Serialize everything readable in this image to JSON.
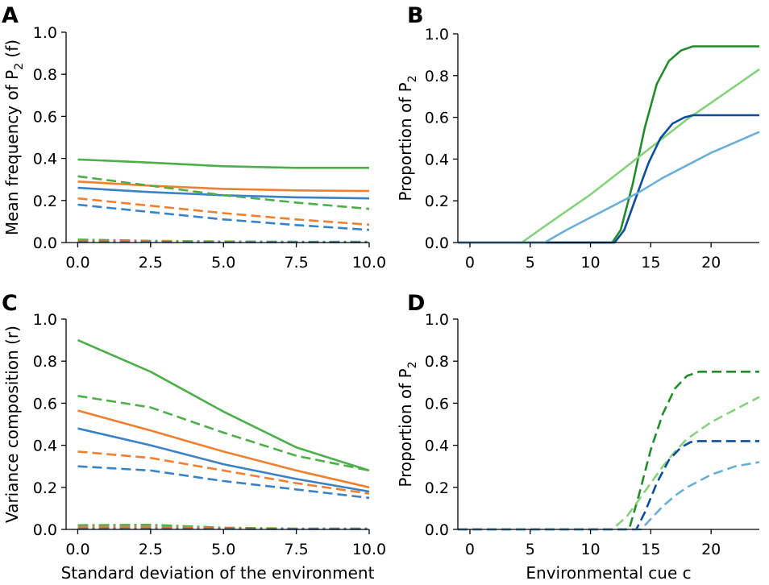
{
  "chart_data": [
    {
      "panel": "A",
      "type": "line",
      "title": "",
      "xlabel": "",
      "ylabel": "Mean frequency of P",
      "ylabel_sub": "2",
      "ylabel_suffix": " (f)",
      "xlim": [
        -0.4,
        10.0
      ],
      "ylim": [
        0.0,
        1.0
      ],
      "xticks": [
        0,
        2.5,
        5,
        7.5,
        10
      ],
      "xtick_labels": [
        "0.0",
        "2.5",
        "5.0",
        "7.5",
        "10.0"
      ],
      "yticks": [
        0,
        0.2,
        0.4,
        0.6,
        0.8,
        1.0
      ],
      "ytick_labels": [
        "0.0",
        "0.2",
        "0.4",
        "0.6",
        "0.8",
        "1.0"
      ],
      "series": [
        {
          "name": "green solid",
          "color": "#4daf4a",
          "dash": "solid",
          "x": [
            0,
            2.5,
            5,
            7.5,
            10
          ],
          "y": [
            0.395,
            0.38,
            0.363,
            0.355,
            0.355
          ]
        },
        {
          "name": "orange solid",
          "color": "#f07f30",
          "dash": "solid",
          "x": [
            0,
            2.5,
            5,
            7.5,
            10
          ],
          "y": [
            0.29,
            0.27,
            0.255,
            0.248,
            0.245
          ]
        },
        {
          "name": "blue solid",
          "color": "#3b82c4",
          "dash": "solid",
          "x": [
            0,
            2.5,
            5,
            7.5,
            10
          ],
          "y": [
            0.26,
            0.24,
            0.225,
            0.215,
            0.21
          ]
        },
        {
          "name": "green dashed",
          "color": "#4daf4a",
          "dash": "dashed",
          "x": [
            0,
            2.5,
            5,
            7.5,
            10
          ],
          "y": [
            0.315,
            0.27,
            0.225,
            0.19,
            0.16
          ]
        },
        {
          "name": "orange dashed",
          "color": "#f07f30",
          "dash": "dashed",
          "x": [
            0,
            2.5,
            5,
            7.5,
            10
          ],
          "y": [
            0.21,
            0.175,
            0.14,
            0.11,
            0.085
          ]
        },
        {
          "name": "blue dashed",
          "color": "#3b82c4",
          "dash": "dashed",
          "x": [
            0,
            2.5,
            5,
            7.5,
            10
          ],
          "y": [
            0.18,
            0.145,
            0.11,
            0.083,
            0.06
          ]
        },
        {
          "name": "green dash-dot",
          "color": "#4daf4a",
          "dash": "dashdot",
          "x": [
            0,
            2.5,
            5,
            7.5,
            10
          ],
          "y": [
            0.014,
            0.008,
            0.005,
            0.004,
            0.004
          ]
        },
        {
          "name": "orange dash-dot",
          "color": "#f07f30",
          "dash": "dashdot",
          "x": [
            0,
            2.5,
            5,
            7.5,
            10
          ],
          "y": [
            0.008,
            0.005,
            0.003,
            0.002,
            0.002
          ]
        },
        {
          "name": "blue dash-dot",
          "color": "#3b82c4",
          "dash": "dashdot",
          "x": [
            0,
            2.5,
            5,
            7.5,
            10
          ],
          "y": [
            0.004,
            0.003,
            0.002,
            0.002,
            0.002
          ]
        }
      ]
    },
    {
      "panel": "B",
      "type": "line",
      "title": "",
      "xlabel": "",
      "ylabel": "Proportion of P",
      "ylabel_sub": "2",
      "ylabel_suffix": "",
      "xlim": [
        -1,
        24
      ],
      "ylim": [
        0.0,
        1.0
      ],
      "xticks": [
        0,
        5,
        10,
        15,
        20
      ],
      "xtick_labels": [
        "0",
        "5",
        "10",
        "15",
        "20"
      ],
      "yticks": [
        0,
        0.2,
        0.4,
        0.6,
        0.8,
        1.0
      ],
      "ytick_labels": [
        "0.0",
        "0.2",
        "0.4",
        "0.6",
        "0.8",
        "1.0"
      ],
      "series": [
        {
          "name": "dark green solid",
          "color": "#238b2c",
          "dash": "solid",
          "x": [
            -1,
            11.8,
            12.5,
            13.5,
            14.5,
            15.5,
            16.5,
            17.5,
            18.5,
            19,
            24
          ],
          "y": [
            0,
            0,
            0.06,
            0.28,
            0.55,
            0.76,
            0.87,
            0.92,
            0.94,
            0.94,
            0.94
          ]
        },
        {
          "name": "light green solid",
          "color": "#86d17e",
          "dash": "solid",
          "x": [
            -1,
            4.3,
            6,
            8,
            10,
            12,
            14,
            16,
            18,
            20,
            22,
            24
          ],
          "y": [
            0,
            0,
            0.07,
            0.15,
            0.23,
            0.32,
            0.41,
            0.5,
            0.59,
            0.67,
            0.75,
            0.83
          ]
        },
        {
          "name": "dark blue solid",
          "color": "#0b4f9c",
          "dash": "solid",
          "x": [
            -1,
            12,
            12.8,
            13.8,
            14.8,
            15.8,
            16.8,
            17.8,
            18.5,
            24
          ],
          "y": [
            0,
            0,
            0.06,
            0.22,
            0.38,
            0.5,
            0.57,
            0.6,
            0.61,
            0.61
          ]
        },
        {
          "name": "light blue solid",
          "color": "#6baed6",
          "dash": "solid",
          "x": [
            -1,
            6.2,
            8,
            10,
            12,
            14,
            16,
            18,
            20,
            22,
            24
          ],
          "y": [
            0,
            0,
            0.06,
            0.12,
            0.18,
            0.24,
            0.31,
            0.37,
            0.43,
            0.48,
            0.53
          ]
        }
      ]
    },
    {
      "panel": "C",
      "type": "line",
      "title": "",
      "xlabel": "Standard deviation of the environment",
      "ylabel": "Variance composition (r)",
      "ylabel_sub": "",
      "ylabel_suffix": "",
      "xlim": [
        -0.4,
        10.0
      ],
      "ylim": [
        0.0,
        1.0
      ],
      "xticks": [
        0,
        2.5,
        5,
        7.5,
        10
      ],
      "xtick_labels": [
        "0.0",
        "2.5",
        "5.0",
        "7.5",
        "10.0"
      ],
      "yticks": [
        0,
        0.2,
        0.4,
        0.6,
        0.8,
        1.0
      ],
      "ytick_labels": [
        "0.0",
        "0.2",
        "0.4",
        "0.6",
        "0.8",
        "1.0"
      ],
      "series": [
        {
          "name": "green solid",
          "color": "#4daf4a",
          "dash": "solid",
          "x": [
            0,
            2.5,
            5,
            7.5,
            10
          ],
          "y": [
            0.9,
            0.75,
            0.56,
            0.39,
            0.28
          ]
        },
        {
          "name": "green dashed",
          "color": "#4daf4a",
          "dash": "dashed",
          "x": [
            0,
            2.5,
            5,
            7.5,
            10
          ],
          "y": [
            0.635,
            0.58,
            0.46,
            0.35,
            0.28
          ]
        },
        {
          "name": "orange solid",
          "color": "#f07f30",
          "dash": "solid",
          "x": [
            0,
            2.5,
            5,
            7.5,
            10
          ],
          "y": [
            0.565,
            0.47,
            0.37,
            0.28,
            0.2
          ]
        },
        {
          "name": "blue solid",
          "color": "#3b82c4",
          "dash": "solid",
          "x": [
            0,
            2.5,
            5,
            7.5,
            10
          ],
          "y": [
            0.48,
            0.4,
            0.31,
            0.24,
            0.18
          ]
        },
        {
          "name": "orange dashed",
          "color": "#f07f30",
          "dash": "dashed",
          "x": [
            0,
            2.5,
            5,
            7.5,
            10
          ],
          "y": [
            0.37,
            0.34,
            0.28,
            0.22,
            0.17
          ]
        },
        {
          "name": "blue dashed",
          "color": "#3b82c4",
          "dash": "dashed",
          "x": [
            0,
            2.5,
            5,
            7.5,
            10
          ],
          "y": [
            0.3,
            0.28,
            0.23,
            0.19,
            0.15
          ]
        },
        {
          "name": "green dash-dot",
          "color": "#4daf4a",
          "dash": "dashdot",
          "x": [
            0,
            2.5,
            5,
            7.5,
            10
          ],
          "y": [
            0.02,
            0.022,
            0.008,
            0.004,
            0.004
          ]
        },
        {
          "name": "orange dash-dot",
          "color": "#f07f30",
          "dash": "dashdot",
          "x": [
            0,
            2.5,
            5,
            7.5,
            10
          ],
          "y": [
            0.012,
            0.012,
            0.005,
            0.003,
            0.003
          ]
        },
        {
          "name": "blue dash-dot",
          "color": "#3b82c4",
          "dash": "dashdot",
          "x": [
            0,
            2.5,
            5,
            7.5,
            10
          ],
          "y": [
            0.004,
            0.004,
            0.003,
            0.002,
            0.002
          ]
        }
      ]
    },
    {
      "panel": "D",
      "type": "line",
      "title": "",
      "xlabel": "Environmental cue c",
      "ylabel": "Proportion of P",
      "ylabel_sub": "2",
      "ylabel_suffix": "",
      "xlim": [
        -1,
        24
      ],
      "ylim": [
        0.0,
        1.0
      ],
      "xticks": [
        0,
        5,
        10,
        15,
        20
      ],
      "xtick_labels": [
        "0",
        "5",
        "10",
        "15",
        "20"
      ],
      "yticks": [
        0,
        0.2,
        0.4,
        0.6,
        0.8,
        1.0
      ],
      "ytick_labels": [
        "0.0",
        "0.2",
        "0.4",
        "0.6",
        "0.8",
        "1.0"
      ],
      "series": [
        {
          "name": "dark green dashed",
          "color": "#238b2c",
          "dash": "dashed",
          "x": [
            -1,
            13.2,
            14,
            15,
            16,
            17,
            18,
            19,
            24
          ],
          "y": [
            0,
            0,
            0.16,
            0.38,
            0.55,
            0.67,
            0.73,
            0.75,
            0.75
          ]
        },
        {
          "name": "light green dashed",
          "color": "#86d17e",
          "dash": "dashed",
          "x": [
            -1,
            11.8,
            13,
            14,
            15,
            16,
            17,
            18,
            20,
            22,
            24
          ],
          "y": [
            0,
            0,
            0.06,
            0.14,
            0.22,
            0.3,
            0.37,
            0.43,
            0.51,
            0.57,
            0.63
          ]
        },
        {
          "name": "dark blue dashed",
          "color": "#0b4f9c",
          "dash": "dashed",
          "x": [
            -1,
            13.8,
            14.5,
            15.5,
            16.5,
            17.5,
            18.3,
            19,
            24
          ],
          "y": [
            0,
            0,
            0.08,
            0.22,
            0.33,
            0.39,
            0.415,
            0.42,
            0.42
          ]
        },
        {
          "name": "light blue dashed",
          "color": "#6baed6",
          "dash": "dashed",
          "x": [
            -1,
            14.2,
            15,
            16,
            17,
            18,
            20,
            22,
            24
          ],
          "y": [
            0,
            0,
            0.05,
            0.11,
            0.16,
            0.2,
            0.26,
            0.3,
            0.32
          ]
        }
      ]
    }
  ]
}
